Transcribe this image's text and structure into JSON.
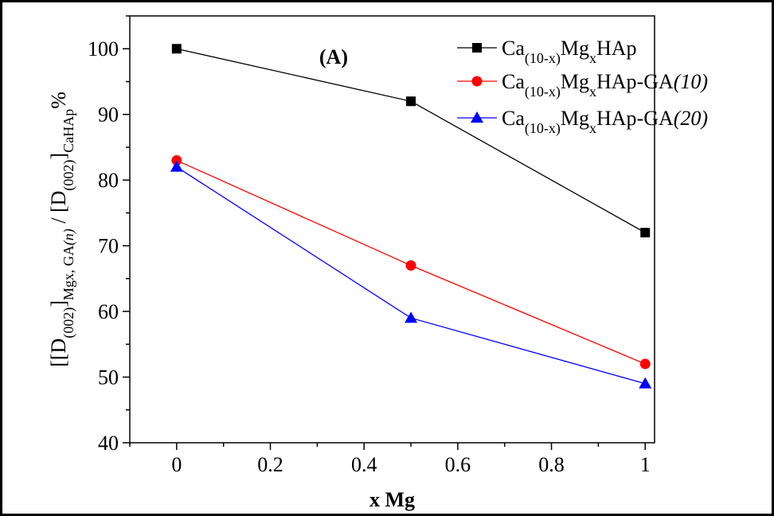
{
  "chart_data": {
    "type": "line",
    "panel_label": "(A)",
    "xlabel": "x Mg",
    "ylabel": {
      "parts": [
        {
          "t": "[[D"
        },
        {
          "t": "(002)",
          "sub": true
        },
        {
          "t": "]"
        },
        {
          "t": "Mgx, GA",
          "sub": true
        },
        {
          "t": "(n)",
          "sub": true,
          "italic": true
        },
        {
          "t": " / [D"
        },
        {
          "t": "(002)",
          "sub": true
        },
        {
          "t": "]"
        },
        {
          "t": "CaHAp",
          "sub": true
        },
        {
          "t": "%"
        }
      ]
    },
    "xlim": [
      -0.1,
      1.02
    ],
    "ylim": [
      40,
      105
    ],
    "xticks": [
      0,
      0.2,
      0.4,
      0.6,
      0.8,
      1
    ],
    "xtick_labels": [
      "0",
      "0.2",
      "0.4",
      "0.6",
      "0.8",
      "1"
    ],
    "yticks": [
      40,
      50,
      60,
      70,
      80,
      90,
      100
    ],
    "ytick_labels": [
      "40",
      "50",
      "60",
      "70",
      "80",
      "90",
      "100"
    ],
    "grid": false,
    "legend_position": "top-right",
    "x": [
      0,
      0.5,
      1
    ],
    "series": [
      {
        "legend": [
          {
            "t": "Ca"
          },
          {
            "t": "(10-x)",
            "sub": true
          },
          {
            "t": "Mg"
          },
          {
            "t": "x",
            "sub": true
          },
          {
            "t": "HAp"
          }
        ],
        "values": [
          100,
          92,
          72
        ],
        "color": "#000000",
        "marker": "square"
      },
      {
        "legend": [
          {
            "t": "Ca"
          },
          {
            "t": "(10-x)",
            "sub": true
          },
          {
            "t": "Mg"
          },
          {
            "t": "x",
            "sub": true
          },
          {
            "t": "HAp-GA"
          },
          {
            "t": "(10)",
            "italic": true
          }
        ],
        "values": [
          83,
          67,
          52
        ],
        "color": "#ff0000",
        "marker": "circle"
      },
      {
        "legend": [
          {
            "t": "Ca"
          },
          {
            "t": "(10-x)",
            "sub": true
          },
          {
            "t": "Mg"
          },
          {
            "t": "x",
            "sub": true
          },
          {
            "t": "HAp-GA"
          },
          {
            "t": "(20)",
            "italic": true
          }
        ],
        "values": [
          82,
          59,
          49
        ],
        "color": "#0000ff",
        "marker": "triangle"
      }
    ]
  }
}
